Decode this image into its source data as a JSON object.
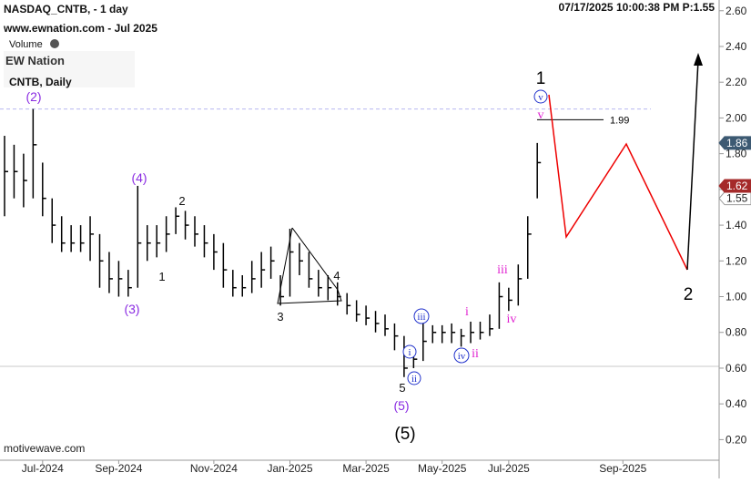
{
  "header": {
    "symbol": "NASDAQ_CNTB, - 1 day",
    "site": "www.ewnation.com  - Jul 2025",
    "volume": "Volume",
    "logo": "EW Nation",
    "timestamp": "07/17/2025 10:00:38 PM  P:1.55",
    "footer": "motivewave.com"
  },
  "chart_data": {
    "type": "ohlc",
    "title": "CNTB, Daily",
    "color": "#000000",
    "categories": [
      null,
      null,
      null,
      null,
      "Jul-2024",
      null,
      null,
      null,
      null,
      null,
      null,
      null,
      "Sep-2024",
      null,
      null,
      null,
      null,
      null,
      null,
      null,
      null,
      null,
      "Nov-2024",
      null,
      null,
      null,
      null,
      null,
      null,
      null,
      "Jan-2025",
      null,
      null,
      null,
      null,
      null,
      null,
      null,
      "Mar-2025",
      null,
      null,
      null,
      null,
      null,
      null,
      null,
      "May-2025",
      null,
      null,
      null,
      null,
      null,
      null,
      "Jul-2025",
      null,
      null,
      null,
      null,
      null,
      null,
      null,
      null,
      null,
      null,
      null,
      "Sep-2025",
      null,
      null,
      null,
      null,
      null,
      null,
      null,
      null,
      null
    ],
    "close": [
      1.7,
      1.7,
      1.65,
      1.85,
      1.55,
      1.4,
      1.3,
      1.3,
      1.3,
      1.35,
      1.2,
      1.1,
      1.1,
      1.05,
      1.3,
      1.3,
      1.3,
      1.35,
      1.45,
      1.4,
      1.35,
      1.3,
      1.25,
      1.15,
      1.05,
      1.05,
      1.1,
      1.15,
      1.2,
      1.0,
      1.25,
      1.2,
      1.1,
      1.05,
      1.05,
      1.0,
      0.95,
      0.9,
      0.88,
      0.85,
      0.82,
      0.78,
      0.6,
      0.65,
      0.75,
      0.8,
      0.8,
      0.8,
      0.78,
      0.8,
      0.8,
      0.82,
      1.0,
      0.98,
      1.1,
      1.35,
      1.75,
      null,
      null,
      null,
      null,
      null,
      null,
      null,
      null,
      null,
      null,
      null,
      null,
      null,
      null,
      null,
      null,
      null,
      null
    ],
    "high": [
      1.9,
      1.85,
      1.8,
      2.05,
      1.75,
      1.55,
      1.45,
      1.4,
      1.4,
      1.45,
      1.35,
      1.25,
      1.2,
      1.15,
      1.62,
      1.4,
      1.4,
      1.45,
      1.5,
      1.48,
      1.45,
      1.4,
      1.35,
      1.3,
      1.15,
      1.12,
      1.2,
      1.25,
      1.28,
      1.12,
      1.38,
      1.3,
      1.25,
      1.15,
      1.12,
      1.08,
      1.02,
      0.98,
      0.95,
      0.92,
      0.9,
      0.85,
      0.78,
      0.72,
      0.85,
      0.84,
      0.84,
      0.85,
      0.82,
      0.86,
      0.86,
      0.9,
      1.08,
      1.05,
      1.18,
      1.45,
      1.86,
      null,
      null,
      null,
      null,
      null,
      null,
      null,
      null,
      null,
      null,
      null,
      null,
      null,
      null,
      null,
      null,
      null,
      null
    ],
    "low": [
      1.45,
      1.55,
      1.5,
      1.55,
      1.45,
      1.3,
      1.25,
      1.25,
      1.25,
      1.2,
      1.05,
      1.02,
      1.0,
      1.0,
      1.05,
      1.2,
      1.22,
      1.25,
      1.35,
      1.32,
      1.28,
      1.22,
      1.15,
      1.05,
      1.0,
      1.0,
      1.02,
      1.05,
      1.1,
      0.95,
      1.0,
      1.12,
      1.05,
      1.0,
      0.98,
      0.95,
      0.9,
      0.86,
      0.84,
      0.8,
      0.78,
      0.7,
      0.55,
      0.6,
      0.64,
      0.74,
      0.74,
      0.74,
      0.72,
      0.74,
      0.76,
      0.78,
      0.82,
      0.92,
      0.95,
      1.1,
      1.55,
      null,
      null,
      null,
      null,
      null,
      null,
      null,
      null,
      null,
      null,
      null,
      null,
      null,
      null,
      null,
      null,
      null,
      null
    ],
    "ylim": [
      0.1,
      2.66
    ],
    "yticks": [
      {
        "value": 0.2,
        "label": "0.20"
      },
      {
        "value": 0.4,
        "label": "0.40"
      },
      {
        "value": 0.6,
        "label": "0.60"
      },
      {
        "value": 0.8,
        "label": "0.80"
      },
      {
        "value": 1.0,
        "label": "1.00"
      },
      {
        "value": 1.2,
        "label": "1.20"
      },
      {
        "value": 1.4,
        "label": "1.40"
      },
      {
        "value": 1.6,
        "label": "1.60"
      },
      {
        "value": 1.8,
        "label": "1.80"
      },
      {
        "value": 2.0,
        "label": "2.00"
      },
      {
        "value": 2.2,
        "label": "2.20"
      },
      {
        "value": 2.4,
        "label": "2.40"
      },
      {
        "value": 2.6,
        "label": "2.60"
      }
    ],
    "price_tags": [
      {
        "value": 1.86,
        "color": "#3d5a73"
      },
      {
        "value": 1.55,
        "color": "#ffffff"
      },
      {
        "value": 1.62,
        "color": "#a52a2a"
      }
    ],
    "target_level": 1.99,
    "dashed_level": 2.05,
    "dashed_color": "#b8b8f0",
    "support_level": 0.61,
    "support_color": "#c8c8c8",
    "annotations": [
      "(2)",
      "(4)",
      "(3)",
      "2",
      "1",
      "4",
      "3",
      "5",
      "(5)",
      "(5)",
      "i",
      "ii",
      "iii",
      "iv",
      "v",
      "1",
      "v",
      "i",
      "ii",
      "iii",
      "iv",
      "2"
    ]
  }
}
